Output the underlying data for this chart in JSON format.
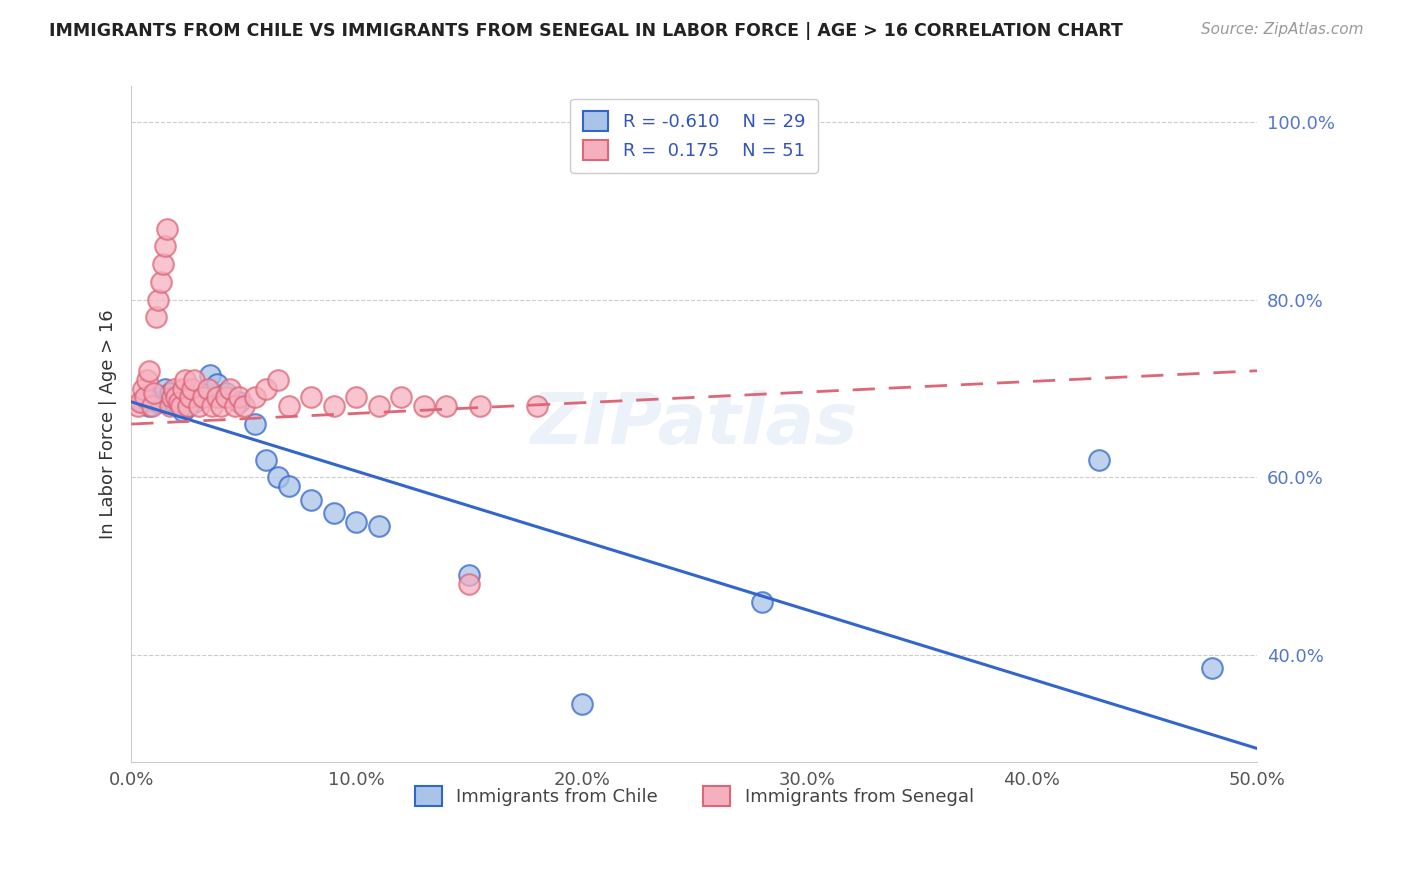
{
  "title": "IMMIGRANTS FROM CHILE VS IMMIGRANTS FROM SENEGAL IN LABOR FORCE | AGE > 16 CORRELATION CHART",
  "source": "Source: ZipAtlas.com",
  "ylabel": "In Labor Force | Age > 16",
  "chile_color": "#aac4e8",
  "senegal_color": "#f5b0c0",
  "chile_line_color": "#3366cc",
  "senegal_line_color": "#dd6677",
  "chile_R": -0.61,
  "chile_N": 29,
  "senegal_R": 0.175,
  "senegal_N": 51,
  "xlim": [
    0.0,
    0.5
  ],
  "ylim": [
    0.28,
    1.04
  ],
  "xticks": [
    0.0,
    0.1,
    0.2,
    0.3,
    0.4,
    0.5
  ],
  "yticks": [
    0.4,
    0.6,
    0.8,
    1.0
  ],
  "chile_x": [
    0.005,
    0.008,
    0.01,
    0.012,
    0.015,
    0.017,
    0.019,
    0.021,
    0.023,
    0.025,
    0.028,
    0.032,
    0.035,
    0.038,
    0.042,
    0.048,
    0.055,
    0.06,
    0.065,
    0.07,
    0.08,
    0.09,
    0.1,
    0.11,
    0.15,
    0.2,
    0.28,
    0.43,
    0.48
  ],
  "chile_y": [
    0.685,
    0.68,
    0.69,
    0.685,
    0.7,
    0.695,
    0.685,
    0.68,
    0.675,
    0.68,
    0.685,
    0.69,
    0.715,
    0.705,
    0.695,
    0.685,
    0.66,
    0.62,
    0.6,
    0.59,
    0.575,
    0.56,
    0.55,
    0.545,
    0.49,
    0.345,
    0.46,
    0.62,
    0.385
  ],
  "senegal_x": [
    0.003,
    0.004,
    0.005,
    0.006,
    0.007,
    0.008,
    0.009,
    0.01,
    0.011,
    0.012,
    0.013,
    0.014,
    0.015,
    0.016,
    0.017,
    0.018,
    0.019,
    0.02,
    0.021,
    0.022,
    0.023,
    0.024,
    0.025,
    0.026,
    0.027,
    0.028,
    0.03,
    0.032,
    0.034,
    0.036,
    0.038,
    0.04,
    0.042,
    0.044,
    0.046,
    0.048,
    0.05,
    0.055,
    0.06,
    0.065,
    0.07,
    0.08,
    0.09,
    0.1,
    0.11,
    0.12,
    0.13,
    0.14,
    0.15,
    0.155,
    0.18
  ],
  "senegal_y": [
    0.68,
    0.685,
    0.7,
    0.69,
    0.71,
    0.72,
    0.68,
    0.695,
    0.78,
    0.8,
    0.82,
    0.84,
    0.86,
    0.88,
    0.68,
    0.69,
    0.7,
    0.69,
    0.685,
    0.68,
    0.7,
    0.71,
    0.68,
    0.69,
    0.7,
    0.71,
    0.68,
    0.69,
    0.7,
    0.68,
    0.69,
    0.68,
    0.69,
    0.7,
    0.68,
    0.69,
    0.68,
    0.69,
    0.7,
    0.71,
    0.68,
    0.69,
    0.68,
    0.69,
    0.68,
    0.69,
    0.68,
    0.68,
    0.48,
    0.68,
    0.68
  ]
}
